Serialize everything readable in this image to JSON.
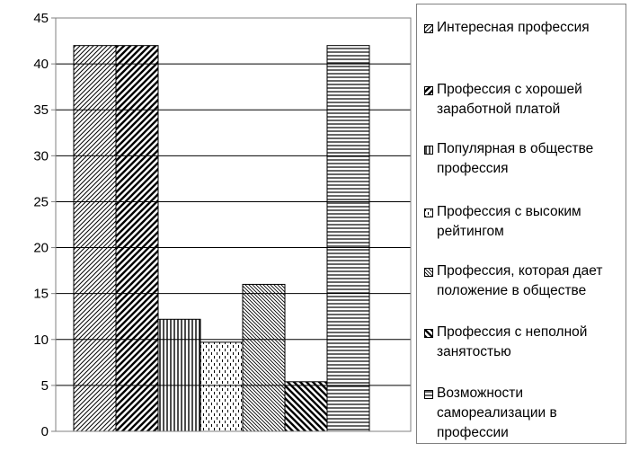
{
  "chart_data": {
    "type": "bar",
    "title": "",
    "xlabel": "",
    "ylabel": "",
    "ylim": [
      0,
      45
    ],
    "yticks": [
      "0",
      "5",
      "10",
      "15",
      "20",
      "25",
      "30",
      "35",
      "40",
      "45"
    ],
    "grid": true,
    "legend_position": "right",
    "series": [
      {
        "name": "Интересная профессия",
        "values": [
          42
        ],
        "pattern": "diag-thin-right"
      },
      {
        "name": "Профессия с хорошей заработной платой",
        "values": [
          42
        ],
        "pattern": "diag-bold-right"
      },
      {
        "name": "Популярная в обществе профессия",
        "values": [
          12.2
        ],
        "pattern": "vertical-lines"
      },
      {
        "name": "Профессия с высоким рейтингом",
        "values": [
          9.7
        ],
        "pattern": "dashed-vertical"
      },
      {
        "name": "Профессия, которая дает положение в обществе",
        "values": [
          16
        ],
        "pattern": "diag-thin-left"
      },
      {
        "name": "Профессия с неполной занятостью",
        "values": [
          5.4
        ],
        "pattern": "diag-bold-left"
      },
      {
        "name": "Возможности самореализации в профессии",
        "values": [
          42
        ],
        "pattern": "horizontal-lines"
      }
    ],
    "colors": {
      "bar_stroke": "#000000",
      "grid": "#000000",
      "axis": "#808080",
      "background": "#ffffff"
    }
  },
  "legend": {
    "items": [
      {
        "label": "Интересная профессия"
      },
      {
        "label": "Профессия с хорошей заработной платой"
      },
      {
        "label": "Популярная в обществе профессия"
      },
      {
        "label": "Профессия с высоким рейтингом"
      },
      {
        "label": "Профессия, которая дает положение в обществе"
      },
      {
        "label": "Профессия с неполной занятостью"
      },
      {
        "label": "Возможности самореализации в профессии"
      }
    ]
  }
}
